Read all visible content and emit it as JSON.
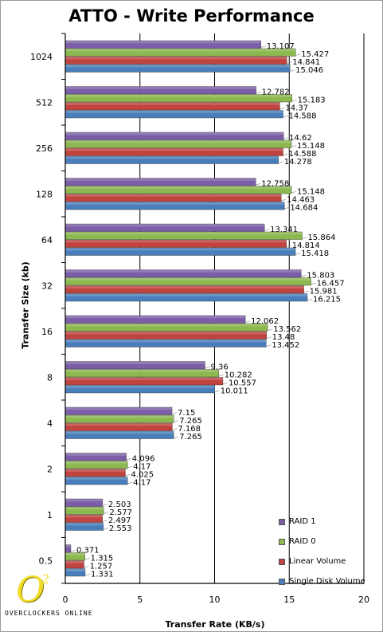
{
  "chart_data": {
    "type": "bar",
    "orientation": "horizontal",
    "title": "ATTO - Write Performance",
    "xlabel": "Transfer Rate (KB/s)",
    "ylabel": "Transfer Size (kb)",
    "xlim": [
      0,
      20
    ],
    "x_ticks": [
      "0",
      "5",
      "10",
      "15",
      "20"
    ],
    "grid": true,
    "legend_position": "bottom-right",
    "categories": [
      "1024",
      "512",
      "256",
      "128",
      "64",
      "32",
      "16",
      "8",
      "4",
      "2",
      "1",
      "0.5"
    ],
    "series": [
      {
        "name": "RAID 1",
        "color": "#7b5ea7",
        "values": [
          13.107,
          12.782,
          14.62,
          12.758,
          13.341,
          15.803,
          12.062,
          9.36,
          7.15,
          4.096,
          2.503,
          0.371
        ]
      },
      {
        "name": "RAID 0",
        "color": "#8cb84f",
        "values": [
          15.427,
          15.183,
          15.148,
          15.148,
          15.864,
          16.457,
          13.562,
          10.282,
          7.265,
          4.17,
          2.577,
          1.315
        ]
      },
      {
        "name": "Linear Volume",
        "color": "#c0433f",
        "values": [
          14.841,
          14.37,
          14.588,
          14.463,
          14.814,
          15.981,
          13.48,
          10.557,
          7.168,
          4.025,
          2.497,
          1.257
        ]
      },
      {
        "name": "Single Disk Volume",
        "color": "#4a7ebb",
        "values": [
          15.046,
          14.588,
          14.278,
          14.684,
          15.418,
          16.215,
          13.452,
          10.011,
          7.265,
          4.17,
          2.553,
          1.331
        ]
      }
    ]
  },
  "logo": {
    "mark": "O",
    "superscript": "2",
    "text": "OVERCLOCKERS ONLINE"
  }
}
